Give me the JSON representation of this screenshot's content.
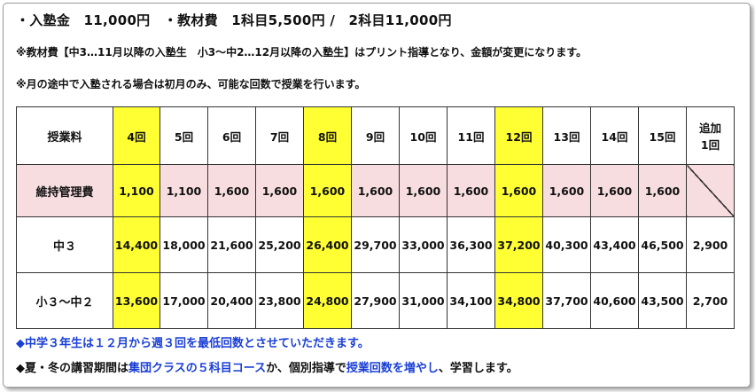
{
  "header": {
    "line1": "・入塾金　11,000円　・教材費　1科目5,500円 /　2科目11,000円",
    "note1": "※教材費【中3…11月以降の入塾生　小3～中2…12月以降の入塾生】はプリント指導となり、金額が変更になります。",
    "note2": "※月の途中で入塾される場合は初月のみ、可能な回数で授業を行います。"
  },
  "table": {
    "corner_label": "授業料",
    "columns": [
      "4回",
      "5回",
      "6回",
      "7回",
      "8回",
      "9回",
      "10回",
      "11回",
      "12回",
      "13回",
      "14回",
      "15回"
    ],
    "extra_column": [
      "追加",
      "1回"
    ],
    "highlight_columns": [
      0,
      4,
      8
    ],
    "highlight_color": "#ffff33",
    "maintenance_row_color": "#f7dde0",
    "rows": [
      {
        "label": "維持管理費",
        "values": [
          "1,100",
          "1,100",
          "1,600",
          "1,600",
          "1,600",
          "1,600",
          "1,600",
          "1,600",
          "1,600",
          "1,600",
          "1,600",
          "1,600"
        ],
        "extra": ""
      },
      {
        "label": "中３",
        "values": [
          "14,400",
          "18,000",
          "21,600",
          "25,200",
          "26,400",
          "29,700",
          "33,000",
          "36,300",
          "37,200",
          "40,300",
          "43,400",
          "46,500"
        ],
        "extra": "2,900"
      },
      {
        "label": "小３～中２",
        "values": [
          "13,600",
          "17,000",
          "20,400",
          "23,800",
          "24,800",
          "27,900",
          "31,000",
          "34,100",
          "34,800",
          "37,700",
          "40,600",
          "43,500"
        ],
        "extra": "2,700"
      }
    ]
  },
  "footer": {
    "b1_marker": "◆",
    "b1_text": "中学３年生は１２月から週３回を最低回数とさせていただきます。",
    "b2_marker": "◆",
    "b2_part1": "夏・冬の講習期間は",
    "b2_part2": "集団クラスの５科目コース",
    "b2_part3": "か、個別指導で",
    "b2_part4": "授業回数を増やし",
    "b2_part5": "、学習します。"
  },
  "colors": {
    "accent_blue": "#1a3fd6"
  }
}
